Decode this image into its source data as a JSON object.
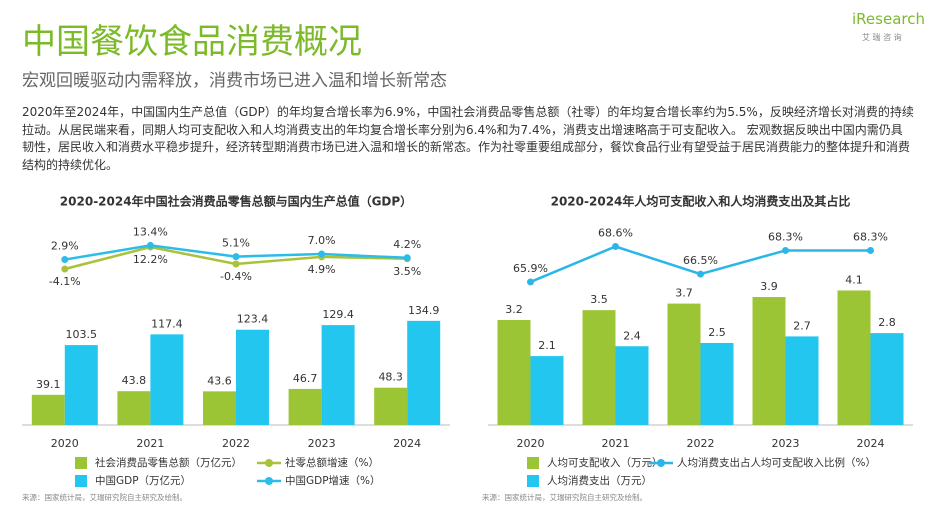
{
  "header": {
    "title": "中国餐饮食品消费概况",
    "subtitle": "宏观回暖驱动内需释放，消费市场已进入温和增长新常态",
    "logo": "iResearch",
    "logo_sub": "艾 瑞 咨 询"
  },
  "body": "2020年至2024年，中国国内生产总值（GDP）的年均复合增长率为6.9%，中国社会消费品零售总额（社零）的年均复合增长率约为5.5%，反映经济增长对消费的持续拉动。从居民端来看，同期人均可支配收入和人均消费支出的年均复合增长率分别为6.4%和为7.4%，消费支出增速略高于可支配收入。 宏观数据反映出中国内需仍具韧性，居民收入和消费水平稳步提升，经济转型期消费市场已进入温和增长的新常态。作为社零重要组成部分，餐饮食品行业有望受益于居民消费能力的整体提升和消费结构的持续优化。",
  "chart_data": [
    {
      "type": "bar",
      "title": "2020-2024年中国社会消费品零售总额与国内生产总值（GDP）",
      "categories": [
        "2020",
        "2021",
        "2022",
        "2023",
        "2024"
      ],
      "ylim": [
        0,
        272
      ],
      "y2lim": [
        -120,
        36
      ],
      "series": [
        {
          "name": "社会消费品零售总额（万亿元）",
          "color": "#9cc536",
          "values": [
            39.1,
            43.8,
            43.6,
            46.7,
            48.3
          ]
        },
        {
          "name": "中国GDP（万亿元）",
          "color": "#22c6ef",
          "values": [
            103.5,
            117.4,
            123.4,
            129.4,
            134.9
          ]
        },
        {
          "name": "社零总额增速（%）",
          "color": "#a8c23c",
          "type": "line",
          "axis": "y2",
          "values": [
            -4.1,
            12.2,
            -0.4,
            4.9,
            3.5
          ],
          "value_labels": [
            "-4.1%",
            "12.2%",
            "-0.4%",
            "4.9%",
            "3.5%"
          ]
        },
        {
          "name": "中国GDP增速（%）",
          "color": "#2bbcea",
          "type": "line",
          "axis": "y2",
          "values": [
            2.9,
            13.4,
            5.1,
            7.0,
            4.2
          ],
          "value_labels": [
            "2.9%",
            "13.4%",
            "5.1%",
            "7.0%",
            "4.2%"
          ]
        }
      ],
      "source": "来源：国家统计局，艾瑞研究院自主研究及绘制。"
    },
    {
      "type": "bar",
      "title": "2020-2024年人均可支配收入和人均消费支出及其占比",
      "categories": [
        "2020",
        "2021",
        "2022",
        "2023",
        "2024"
      ],
      "ylim": [
        0,
        6.4
      ],
      "y2lim": [
        55,
        71
      ],
      "series": [
        {
          "name": "人均可支配收入（万元）",
          "color": "#9cc536",
          "values": [
            3.2,
            3.5,
            3.7,
            3.9,
            4.1
          ]
        },
        {
          "name": "人均消费支出（万元）",
          "color": "#22c6ef",
          "values": [
            2.1,
            2.4,
            2.5,
            2.7,
            2.8
          ]
        },
        {
          "name": "人均消费支出占人均可支配收入比例（%）",
          "color": "#2bb6e8",
          "type": "line",
          "axis": "y2",
          "values": [
            65.9,
            68.6,
            66.5,
            68.3,
            68.3
          ],
          "value_labels": [
            "65.9%",
            "68.6%",
            "66.5%",
            "68.3%",
            "68.3%"
          ]
        }
      ],
      "source": "来源：国家统计局，艾瑞研究院自主研究及绘制。"
    }
  ]
}
